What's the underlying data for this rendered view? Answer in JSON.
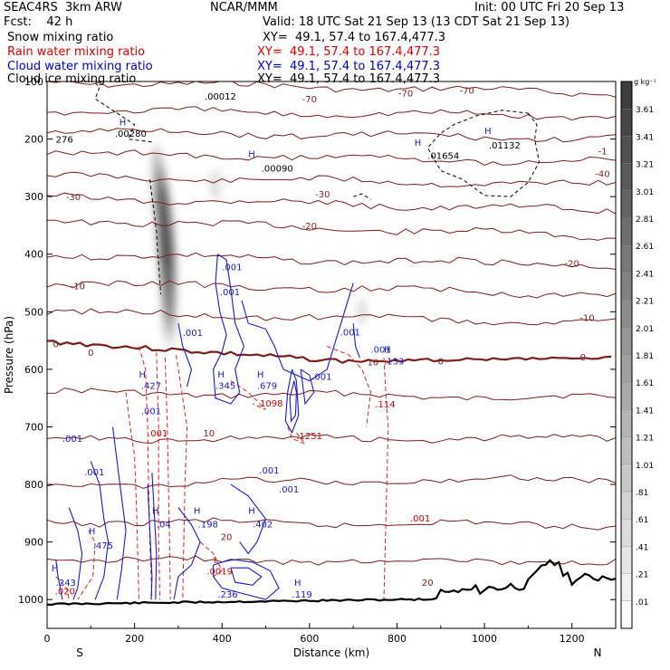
{
  "header": {
    "model": "SEAC4RS  3km ARW",
    "fcst": "Fcst:    42 h",
    "org": "NCAR/MMM",
    "init": "Init: 00 UTC Fri 20 Sep 13",
    "valid": "Valid: 18 UTC Sat 21 Sep 13 (13 CDT Sat 21 Sep 13)"
  },
  "fields": [
    {
      "label": "Snow mixing ratio",
      "xy": "XY=  49.1, 57.4 to 167.4,477.3",
      "color": "#000000"
    },
    {
      "label": "Rain water mixing ratio",
      "xy": "XY=  49.1, 57.4 to 167.4,477.3",
      "color": "#dd0000"
    },
    {
      "label": "Cloud water mixing ratio",
      "xy": "XY=  49.1, 57.4 to 167.4,477.3",
      "color": "#0000cc"
    },
    {
      "label": "Cloud ice mixing ratio",
      "xy": "XY=  49.1, 57.4 to 167.4,477.3",
      "color": "#000000"
    }
  ],
  "colorbar": {
    "unit": "g kg⁻¹",
    "levels": [
      "3.61",
      "3.41",
      "3.21",
      "3.01",
      "2.81",
      "2.61",
      "2.41",
      "2.21",
      "2.01",
      "1.81",
      "1.61",
      "1.41",
      "1.21",
      "1.01",
      ".81",
      ".61",
      ".41",
      ".21",
      ".01"
    ]
  },
  "chart_data": {
    "type": "contour",
    "xlabel": "Distance (km)",
    "ylabel": "Pressure (hPa)",
    "xlim": [
      0,
      1300
    ],
    "ylim": [
      1050,
      100
    ],
    "xticks": [
      0,
      200,
      400,
      600,
      800,
      1000,
      1200
    ],
    "yticks": [
      100,
      200,
      300,
      400,
      500,
      600,
      700,
      800,
      900,
      1000
    ],
    "x_end_labels": {
      "left": "S",
      "right": "N"
    },
    "temperature_labels": [
      {
        "text": "-70",
        "x": 600,
        "p": 130
      },
      {
        "text": "-70",
        "x": 820,
        "p": 120
      },
      {
        "text": "-70",
        "x": 960,
        "p": 115
      },
      {
        "text": "-40",
        "x": 1270,
        "p": 260
      },
      {
        "text": "-30",
        "x": 60,
        "p": 300
      },
      {
        "text": "-30",
        "x": 630,
        "p": 295
      },
      {
        "text": "-20",
        "x": 600,
        "p": 350
      },
      {
        "text": "-20",
        "x": 1200,
        "p": 415
      },
      {
        "text": "-10",
        "x": 70,
        "p": 455
      },
      {
        "text": "-10",
        "x": 1235,
        "p": 510
      },
      {
        "text": "0",
        "x": 20,
        "p": 555
      },
      {
        "text": "0",
        "x": 100,
        "p": 570
      },
      {
        "text": "0",
        "x": 900,
        "p": 585
      },
      {
        "text": "0",
        "x": 1225,
        "p": 578
      },
      {
        "text": "10",
        "x": 370,
        "p": 710
      },
      {
        "text": "10",
        "x": 745,
        "p": 587
      },
      {
        "text": "20",
        "x": 410,
        "p": 890
      },
      {
        "text": "20",
        "x": 870,
        "p": 970
      },
      {
        "text": "-1",
        "x": 1270,
        "p": 220
      }
    ],
    "snow_labels": [
      {
        "text": ".00012",
        "x": 360,
        "p": 125
      },
      {
        "text": ".00280",
        "x": 155,
        "p": 190
      },
      {
        "text": "276",
        "x": 20,
        "p": 200
      },
      {
        "text": ".00090",
        "x": 490,
        "p": 250
      },
      {
        "text": ".01654",
        "x": 870,
        "p": 228
      },
      {
        "text": ".01132",
        "x": 1010,
        "p": 210
      }
    ],
    "rain_labels": [
      {
        "text": ".1098",
        "x": 480,
        "p": 658
      },
      {
        "text": ".1251",
        "x": 570,
        "p": 715
      },
      {
        "text": ".114",
        "x": 750,
        "p": 660
      },
      {
        "text": ".001",
        "x": 230,
        "p": 710
      },
      {
        "text": ".001",
        "x": 830,
        "p": 858
      },
      {
        "text": ".0019",
        "x": 365,
        "p": 950
      },
      {
        "text": ".020",
        "x": 18,
        "p": 985
      }
    ],
    "cloud_labels": [
      {
        "text": ".001",
        "x": 400,
        "p": 422
      },
      {
        "text": ".001",
        "x": 395,
        "p": 465
      },
      {
        "text": ".001",
        "x": 310,
        "p": 536
      },
      {
        "text": ".001",
        "x": 670,
        "p": 535
      },
      {
        "text": ".001",
        "x": 740,
        "p": 565
      },
      {
        "text": ".133",
        "x": 770,
        "p": 585
      },
      {
        "text": ".427",
        "x": 215,
        "p": 628
      },
      {
        "text": ".345",
        "x": 385,
        "p": 628
      },
      {
        "text": ".679",
        "x": 480,
        "p": 628
      },
      {
        "text": ".001",
        "x": 605,
        "p": 612
      },
      {
        "text": ".001",
        "x": 215,
        "p": 672
      },
      {
        "text": ".001",
        "x": 35,
        "p": 720
      },
      {
        "text": ".001",
        "x": 85,
        "p": 778
      },
      {
        "text": ".001",
        "x": 485,
        "p": 775
      },
      {
        "text": ".001",
        "x": 530,
        "p": 808
      },
      {
        "text": ".04",
        "x": 250,
        "p": 868
      },
      {
        "text": ".198",
        "x": 345,
        "p": 868
      },
      {
        "text": ".402",
        "x": 470,
        "p": 868
      },
      {
        "text": ".475",
        "x": 105,
        "p": 905
      },
      {
        "text": ".243",
        "x": 20,
        "p": 970
      },
      {
        "text": ".236",
        "x": 390,
        "p": 990
      },
      {
        "text": ".119",
        "x": 560,
        "p": 990
      }
    ],
    "high_markers": [
      {
        "x": 165,
        "p": 170
      },
      {
        "x": 460,
        "p": 225
      },
      {
        "x": 840,
        "p": 205
      },
      {
        "x": 1000,
        "p": 185
      },
      {
        "x": 210,
        "p": 608
      },
      {
        "x": 390,
        "p": 608
      },
      {
        "x": 480,
        "p": 608
      },
      {
        "x": 770,
        "p": 565
      },
      {
        "x": 95,
        "p": 880
      },
      {
        "x": 240,
        "p": 845
      },
      {
        "x": 335,
        "p": 845
      },
      {
        "x": 460,
        "p": 845
      },
      {
        "x": 10,
        "p": 945
      },
      {
        "x": 565,
        "p": 970
      }
    ],
    "low_markers": [
      {
        "x": 380,
        "p": 930
      }
    ]
  }
}
